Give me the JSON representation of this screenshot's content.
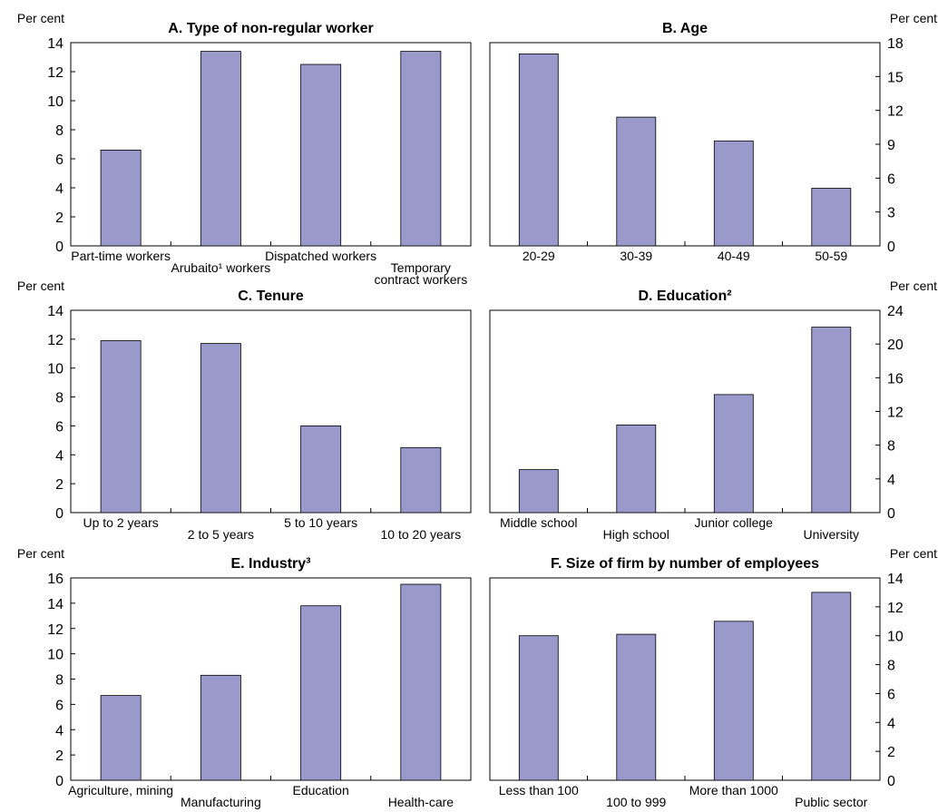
{
  "style": {
    "bar_color": "#9999cc",
    "axis_color": "#000000"
  },
  "chart_data": [
    {
      "type": "bar",
      "title": "A. Type of non-regular worker",
      "ylabel": "Per cent",
      "yaxis_side": "left",
      "ylim": [
        0,
        14
      ],
      "yticks": [
        0,
        2,
        4,
        6,
        8,
        10,
        12,
        14
      ],
      "categories": [
        [
          "Part-time workers"
        ],
        [
          "Arubaito¹ workers"
        ],
        [
          "Dispatched workers"
        ],
        [
          "Temporary",
          "contract workers"
        ]
      ],
      "label_rows": [
        0,
        1,
        0,
        1
      ],
      "values": [
        6.6,
        13.4,
        12.5,
        13.4
      ]
    },
    {
      "type": "bar",
      "title": "B. Age",
      "ylabel": "Per cent",
      "yaxis_side": "right",
      "ylim": [
        0,
        18
      ],
      "yticks": [
        0,
        3,
        6,
        9,
        12,
        15,
        18
      ],
      "categories": [
        [
          "20-29"
        ],
        [
          "30-39"
        ],
        [
          "40-49"
        ],
        [
          "50-59"
        ]
      ],
      "label_rows": [
        0,
        0,
        0,
        0
      ],
      "values": [
        17.0,
        11.4,
        9.3,
        5.1
      ]
    },
    {
      "type": "bar",
      "title": "C. Tenure",
      "ylabel": "Per cent",
      "yaxis_side": "left",
      "ylim": [
        0,
        14
      ],
      "yticks": [
        0,
        2,
        4,
        6,
        8,
        10,
        12,
        14
      ],
      "categories": [
        [
          "Up to 2 years"
        ],
        [
          "2 to 5 years"
        ],
        [
          "5 to 10 years"
        ],
        [
          "10 to 20 years"
        ]
      ],
      "label_rows": [
        0,
        1,
        0,
        1
      ],
      "values": [
        11.9,
        11.7,
        6.0,
        4.5
      ]
    },
    {
      "type": "bar",
      "title": "D. Education²",
      "ylabel": "Per cent",
      "yaxis_side": "right",
      "ylim": [
        0,
        24
      ],
      "yticks": [
        0,
        4,
        8,
        12,
        16,
        20,
        24
      ],
      "categories": [
        [
          "Middle school"
        ],
        [
          "High school"
        ],
        [
          "Junior college"
        ],
        [
          "University"
        ]
      ],
      "label_rows": [
        0,
        1,
        0,
        1
      ],
      "values": [
        5.1,
        10.4,
        14.0,
        22.0
      ]
    },
    {
      "type": "bar",
      "title": "E. Industry³",
      "ylabel": "Per cent",
      "yaxis_side": "left",
      "ylim": [
        0,
        16
      ],
      "yticks": [
        0,
        2,
        4,
        6,
        8,
        10,
        12,
        14,
        16
      ],
      "categories": [
        [
          "Agriculture, mining"
        ],
        [
          "Manufacturing"
        ],
        [
          "Education"
        ],
        [
          "Health-care"
        ]
      ],
      "label_rows": [
        0,
        1,
        0,
        1
      ],
      "values": [
        6.7,
        8.3,
        13.8,
        15.5
      ]
    },
    {
      "type": "bar",
      "title": "F. Size of firm by number of employees",
      "ylabel": "Per cent",
      "yaxis_side": "right",
      "ylim": [
        0,
        14
      ],
      "yticks": [
        0,
        2,
        4,
        6,
        8,
        10,
        12,
        14
      ],
      "categories": [
        [
          "Less than 100"
        ],
        [
          "100 to 999"
        ],
        [
          "More than 1000"
        ],
        [
          "Public sector"
        ]
      ],
      "label_rows": [
        0,
        1,
        0,
        1
      ],
      "values": [
        10.0,
        10.1,
        11.0,
        13.0
      ]
    }
  ]
}
